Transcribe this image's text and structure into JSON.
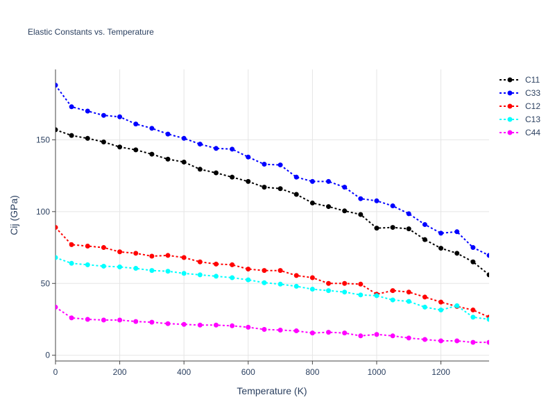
{
  "chart_data": {
    "type": "line",
    "title": "Elastic Constants vs. Temperature",
    "xlabel": "Temperature (K)",
    "ylabel": "Cij (GPa)",
    "xlim": [
      0,
      1350
    ],
    "ylim": [
      -4,
      199
    ],
    "xticks": [
      0,
      200,
      400,
      600,
      800,
      1000,
      1200
    ],
    "yticks": [
      0,
      50,
      100,
      150
    ],
    "grid": true,
    "legend_position": "top-right",
    "x": [
      0,
      50,
      100,
      150,
      200,
      250,
      300,
      350,
      400,
      450,
      500,
      550,
      600,
      650,
      700,
      750,
      800,
      850,
      900,
      950,
      1000,
      1050,
      1100,
      1150,
      1200,
      1250,
      1300,
      1350
    ],
    "series": [
      {
        "name": "C11",
        "color": "#000000",
        "values": [
          157,
          153,
          151,
          148.5,
          145,
          143,
          140,
          136.5,
          134.5,
          129.5,
          127,
          124,
          121,
          117,
          116,
          112,
          106,
          103.5,
          100.5,
          98,
          88.5,
          89,
          88,
          80.5,
          74.5,
          71,
          65,
          56
        ]
      },
      {
        "name": "C33",
        "color": "#0000ff",
        "values": [
          188,
          173,
          170,
          167,
          166,
          161,
          158,
          154,
          151,
          147,
          144,
          143.5,
          138,
          133,
          132.5,
          124,
          121,
          121,
          117,
          109,
          107.5,
          104,
          98.5,
          91,
          85,
          86,
          75,
          69.5
        ]
      },
      {
        "name": "C12",
        "color": "#ff0000",
        "values": [
          89,
          77,
          76,
          75,
          72,
          71,
          69,
          69.5,
          68,
          65,
          63.5,
          63,
          60,
          59,
          59,
          55.5,
          54,
          50,
          50,
          49.5,
          42.5,
          45,
          44,
          40.5,
          37,
          34,
          31.5,
          26.5
        ]
      },
      {
        "name": "C13",
        "color": "#00ffff",
        "values": [
          68,
          64,
          63,
          62,
          61.5,
          60.5,
          59,
          58.5,
          57,
          56,
          55,
          54,
          52.5,
          50.5,
          49.5,
          48,
          46,
          45,
          44,
          42,
          41.5,
          38.5,
          37.5,
          33.5,
          31.5,
          34.5,
          26.5,
          25
        ]
      },
      {
        "name": "C44",
        "color": "#ff00ff",
        "values": [
          33.5,
          26,
          25,
          24.5,
          24.5,
          23.5,
          23,
          22,
          21.5,
          21,
          21,
          20.5,
          19.5,
          18,
          17.5,
          17,
          15.5,
          16,
          15.5,
          13.5,
          14.5,
          13.5,
          12,
          11,
          10,
          10,
          9,
          9
        ]
      }
    ]
  }
}
